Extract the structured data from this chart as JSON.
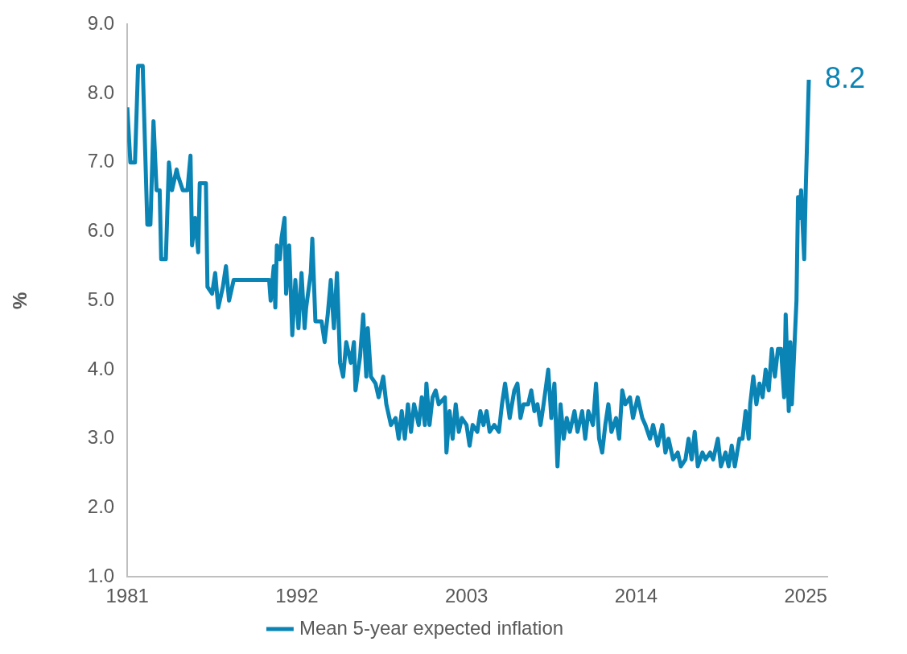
{
  "chart_data": {
    "type": "line",
    "ylabel": "%",
    "xlim": [
      1981,
      2026.4
    ],
    "xticks": [
      1981,
      1992,
      2003,
      2014,
      2025
    ],
    "ylim": [
      1.0,
      9.0
    ],
    "yticks": [
      {
        "value": 1,
        "label": "1.0"
      },
      {
        "value": 2,
        "label": "2.0"
      },
      {
        "value": 3,
        "label": "3.0"
      },
      {
        "value": 4,
        "label": "4.0"
      },
      {
        "value": 5,
        "label": "5.0"
      },
      {
        "value": 6,
        "label": "6.0"
      },
      {
        "value": 7,
        "label": "7.0"
      },
      {
        "value": 8,
        "label": "8.0"
      },
      {
        "value": 9,
        "label": "9.0"
      }
    ],
    "legend": "bottom",
    "annotations": [
      {
        "text": "8.2",
        "x": 2025.2,
        "y": 8.2
      }
    ],
    "series": [
      {
        "name": "Mean 5-year expected inflation",
        "color": "#0a84b4",
        "x": [
          1981.0,
          1981.2,
          1981.5,
          1981.7,
          1982.0,
          1982.3,
          1982.5,
          1982.7,
          1982.9,
          1983.1,
          1983.2,
          1983.5,
          1983.7,
          1983.9,
          1984.2,
          1984.3,
          1984.6,
          1984.9,
          1985.1,
          1985.2,
          1985.4,
          1985.6,
          1985.7,
          1986.1,
          1986.2,
          1986.5,
          1986.7,
          1986.9,
          1987.2,
          1987.4,
          1987.6,
          1987.9,
          1990.2,
          1990.3,
          1990.5,
          1990.6,
          1990.7,
          1990.9,
          1991.0,
          1991.2,
          1991.3,
          1991.5,
          1991.7,
          1991.9,
          1992.1,
          1992.3,
          1992.5,
          1992.6,
          1992.9,
          1993.0,
          1993.2,
          1993.6,
          1993.8,
          1994.0,
          1994.2,
          1994.4,
          1994.6,
          1994.8,
          1995.0,
          1995.2,
          1995.5,
          1995.7,
          1995.8,
          1996.1,
          1996.3,
          1996.5,
          1996.6,
          1996.8,
          1997.1,
          1997.3,
          1997.6,
          1997.8,
          1998.1,
          1998.4,
          1998.6,
          1998.8,
          1999.0,
          1999.2,
          1999.4,
          1999.6,
          1999.9,
          2000.1,
          2000.3,
          2000.4,
          2000.6,
          2000.8,
          2001.0,
          2001.2,
          2001.6,
          2001.7,
          2001.9,
          2002.1,
          2002.3,
          2002.5,
          2002.7,
          2003.0,
          2003.2,
          2003.4,
          2003.7,
          2003.9,
          2004.1,
          2004.3,
          2004.5,
          2004.8,
          2005.1,
          2005.3,
          2005.5,
          2005.8,
          2006.1,
          2006.3,
          2006.5,
          2006.7,
          2007.0,
          2007.2,
          2007.4,
          2007.6,
          2007.8,
          2008.0,
          2008.3,
          2008.5,
          2008.7,
          2008.9,
          2009.1,
          2009.3,
          2009.5,
          2009.7,
          2010.0,
          2010.2,
          2010.5,
          2010.7,
          2010.9,
          2011.2,
          2011.4,
          2011.6,
          2011.8,
          2012.0,
          2012.2,
          2012.4,
          2012.7,
          2012.9,
          2013.1,
          2013.3,
          2013.6,
          2013.8,
          2014.1,
          2014.4,
          2014.6,
          2014.9,
          2015.1,
          2015.4,
          2015.7,
          2015.9,
          2016.1,
          2016.4,
          2016.7,
          2016.9,
          2017.2,
          2017.4,
          2017.6,
          2017.8,
          2018.0,
          2018.3,
          2018.5,
          2018.8,
          2019.0,
          2019.3,
          2019.5,
          2019.8,
          2020.0,
          2020.2,
          2020.4,
          2020.7,
          2020.9,
          2021.1,
          2021.3,
          2021.4,
          2021.6,
          2021.8,
          2022.0,
          2022.2,
          2022.4,
          2022.6,
          2022.8,
          2023.0,
          2023.2,
          2023.4,
          2023.6,
          2023.7,
          2023.9,
          2024.0,
          2024.1,
          2024.4,
          2024.5,
          2024.6,
          2024.7,
          2024.9,
          2025.0,
          2025.2
        ],
        "values": [
          7.8,
          7.0,
          7.0,
          8.4,
          8.4,
          6.1,
          6.1,
          7.6,
          6.6,
          6.6,
          5.6,
          5.6,
          7.0,
          6.6,
          6.9,
          6.8,
          6.6,
          6.6,
          7.1,
          5.8,
          6.2,
          5.7,
          6.7,
          6.7,
          5.2,
          5.1,
          5.4,
          4.9,
          5.2,
          5.5,
          5.0,
          5.3,
          5.3,
          5.0,
          5.5,
          4.9,
          5.8,
          5.6,
          5.9,
          6.2,
          5.1,
          5.8,
          4.5,
          5.3,
          4.6,
          5.4,
          4.6,
          4.9,
          5.4,
          5.9,
          4.7,
          4.7,
          4.4,
          4.8,
          5.3,
          4.6,
          5.4,
          4.1,
          3.9,
          4.4,
          4.1,
          4.4,
          3.7,
          4.2,
          4.8,
          3.9,
          4.6,
          3.9,
          3.8,
          3.6,
          3.9,
          3.5,
          3.2,
          3.3,
          3.0,
          3.4,
          3.0,
          3.5,
          3.1,
          3.5,
          3.2,
          3.6,
          3.2,
          3.8,
          3.2,
          3.6,
          3.7,
          3.5,
          3.6,
          2.8,
          3.4,
          3.0,
          3.5,
          3.1,
          3.3,
          3.2,
          2.9,
          3.2,
          3.1,
          3.4,
          3.2,
          3.4,
          3.1,
          3.2,
          3.1,
          3.5,
          3.8,
          3.3,
          3.7,
          3.8,
          3.3,
          3.5,
          3.5,
          3.7,
          3.4,
          3.5,
          3.2,
          3.5,
          4.0,
          3.3,
          3.8,
          2.6,
          3.5,
          3.0,
          3.3,
          3.1,
          3.4,
          3.1,
          3.4,
          3.0,
          3.4,
          3.2,
          3.8,
          3.0,
          2.8,
          3.2,
          3.5,
          3.1,
          3.3,
          3.0,
          3.7,
          3.5,
          3.6,
          3.3,
          3.6,
          3.3,
          3.2,
          3.0,
          3.2,
          2.9,
          3.2,
          2.8,
          3.0,
          2.7,
          2.8,
          2.6,
          2.7,
          3.0,
          2.7,
          3.1,
          2.6,
          2.8,
          2.7,
          2.8,
          2.7,
          3.0,
          2.6,
          2.8,
          2.6,
          2.9,
          2.6,
          3.0,
          3.0,
          3.4,
          3.0,
          3.5,
          3.9,
          3.5,
          3.8,
          3.6,
          4.0,
          3.7,
          4.3,
          3.9,
          4.3,
          4.3,
          3.6,
          4.8,
          3.4,
          4.4,
          3.5,
          5.0,
          6.5,
          6.2,
          6.6,
          5.6,
          6.6,
          8.2
        ]
      }
    ]
  }
}
